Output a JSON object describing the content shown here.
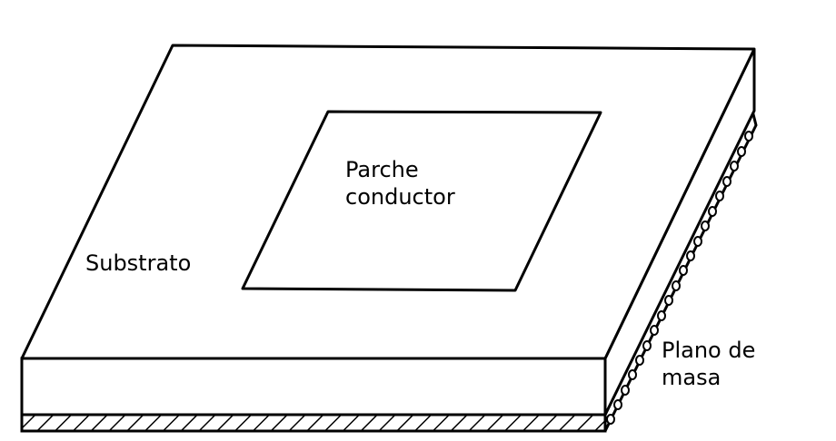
{
  "labels": {
    "patch_line1": "Parche",
    "patch_line2": "conductor",
    "substrate": "Substrato",
    "ground_line1": "Plano de",
    "ground_line2": "masa"
  }
}
